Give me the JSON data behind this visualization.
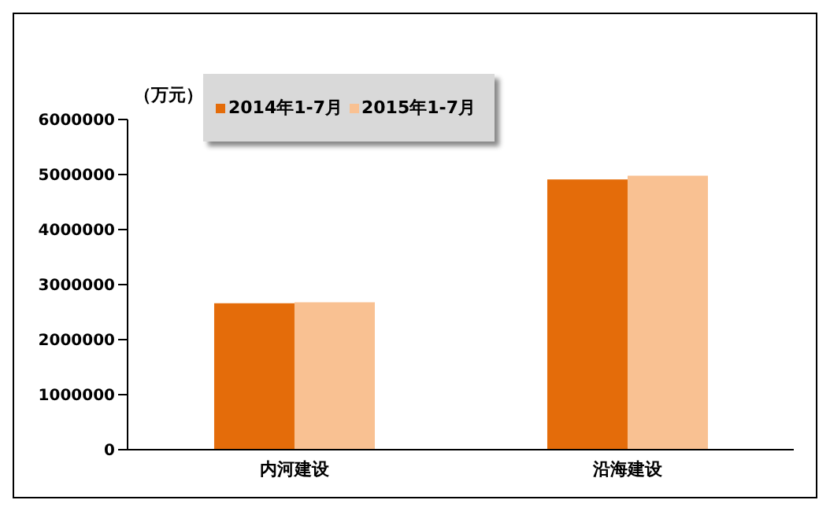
{
  "chart_data": {
    "type": "bar",
    "ylabel": "（万元）",
    "categories": [
      "内河建设",
      "沿海建设"
    ],
    "series": [
      {
        "name": "2014年1-7月",
        "color": "#e46c0a",
        "values": [
          2660000,
          4910000
        ]
      },
      {
        "name": "2015年1-7月",
        "color": "#f9c192",
        "values": [
          2680000,
          4980000
        ]
      }
    ],
    "ylim": [
      0,
      6000000
    ],
    "yticks": [
      0,
      1000000,
      2000000,
      3000000,
      4000000,
      5000000,
      6000000
    ],
    "grid": false,
    "legend": "top left"
  }
}
